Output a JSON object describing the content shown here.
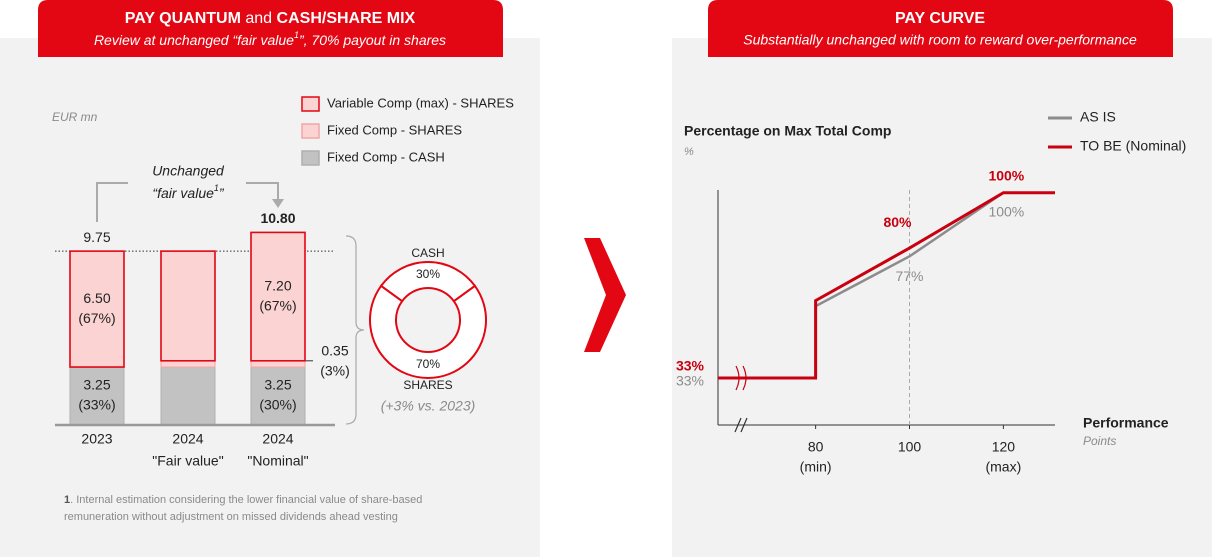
{
  "chart_data": [
    {
      "type": "bar",
      "title": [
        "PAY QUANTUM",
        " and ",
        "CASH/SHARE MIX"
      ],
      "subtitle": [
        "Review at unchanged “fair value",
        "1",
        "”, 70% payout in shares"
      ],
      "unit": "EUR mn",
      "categories": [
        "2023",
        "2024",
        "2024"
      ],
      "category_sublabels": [
        null,
        "\"Fair value\"",
        "\"Nominal\""
      ],
      "series": [
        {
          "name": "Fixed Comp - CASH",
          "color": "#c2c2c2",
          "edge": "#b0b0b0",
          "values": [
            3.25,
            3.25,
            3.25
          ],
          "value_labels": [
            "3.25",
            null,
            "3.25"
          ],
          "share_labels": [
            "(33%)",
            null,
            "(30%)"
          ]
        },
        {
          "name": "Fixed Comp - SHARES",
          "color": "#fbd3d3",
          "edge": "#f2a6a6",
          "values": [
            0,
            0.35,
            0.35
          ],
          "value_labels": [
            null,
            null,
            "0.35"
          ],
          "share_labels": [
            null,
            null,
            "(3%)"
          ]
        },
        {
          "name": "Variable Comp (max) - SHARES",
          "color": "#fbd3d3",
          "edge": "#e30613",
          "values": [
            6.5,
            6.15,
            7.2
          ],
          "value_labels": [
            "6.50",
            null,
            "7.20"
          ],
          "share_labels": [
            "(67%)",
            null,
            "(67%)"
          ]
        }
      ],
      "totals": [
        9.75,
        null,
        10.8
      ],
      "total_labels": [
        "9.75",
        null,
        "10.80"
      ],
      "total_bold": [
        false,
        null,
        true
      ],
      "ylim": [
        0,
        12
      ],
      "annotation": [
        "Unchanged",
        "“fair value",
        "1",
        "”"
      ],
      "footnote": [
        "1",
        ". Internal estimation considering the lower financial value of share-based",
        "remuneration without adjustment on missed dividends ahead vesting"
      ]
    },
    {
      "type": "donut",
      "categories": [
        "CASH",
        "SHARES"
      ],
      "values": [
        30,
        70
      ],
      "value_labels": [
        "30%",
        "70%"
      ],
      "color": "#e30613",
      "note": "(+3% vs. 2023)"
    },
    {
      "type": "line",
      "title": "PAY CURVE",
      "subtitle": "Substantially unchanged with room to reward over-performance",
      "y_label": "Percentage on Max Total Comp",
      "y_unit": "%",
      "x_label": "Performance",
      "x_unit": "Points",
      "x": [
        59.2,
        80,
        80,
        100,
        120,
        131
      ],
      "series": [
        {
          "name": "AS IS",
          "color": "#8c8c8c",
          "values": [
            33,
            33,
            59,
            77,
            100,
            100
          ],
          "value_labels": [
            "33%",
            null,
            null,
            "77%",
            "100%",
            null
          ]
        },
        {
          "name": "TO BE (Nominal)",
          "color": "#c8000f",
          "values": [
            33,
            33,
            61,
            80,
            100,
            100
          ],
          "value_labels": [
            "33%",
            null,
            null,
            "80%",
            "100%",
            null
          ]
        }
      ],
      "xlim": [
        59.2,
        131
      ],
      "ylim": [
        16,
        101
      ],
      "xticks": [
        80,
        100,
        120
      ],
      "xtick_sublabels": [
        "(min)",
        null,
        "(max)"
      ],
      "reference_x": 100
    }
  ]
}
